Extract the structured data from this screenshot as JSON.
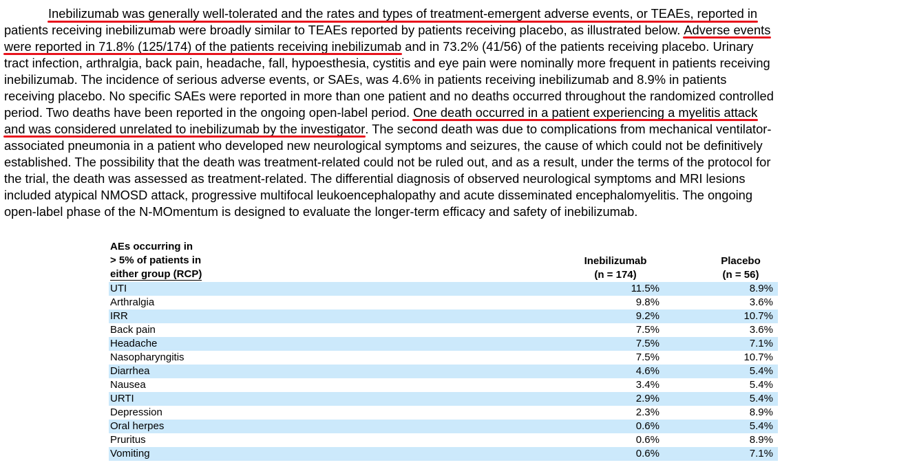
{
  "paragraph": {
    "line1": {
      "highlighted": "Inebilizumab was generally well-tolerated and the rates and types of treatment-emergent adverse events, or TEAEs, reported in"
    },
    "line2": {
      "text": "patients receiving inebilizumab were broadly similar to TEAEs reported by patients receiving placebo, as illustrated below. ",
      "highlighted": "Adverse events"
    },
    "line3": {
      "highlighted": "were reported in 71.8% (125/174) of the patients receiving inebilizumab",
      "text": " and in 73.2% (41/56) of the patients receiving placebo. Urinary"
    },
    "line4": "tract infection, arthralgia, back pain, headache, fall, hypoesthesia, cystitis and eye pain were nominally more frequent in patients receiving",
    "line5": "inebilizumab. The incidence of serious adverse events, or SAEs, was 4.6% in patients receiving inebilizumab and 8.9% in patients",
    "line6": "receiving placebo. No specific SAEs were reported in more than one patient and no deaths occurred throughout the randomized controlled",
    "line7": {
      "text": "period. Two deaths have been reported in the ongoing open-label period. ",
      "highlighted": "One death occurred in a patient experiencing a myelitis attack"
    },
    "line8": {
      "highlighted": "and was considered unrelated to inebilizumab by the investigator",
      "text": ". The second death was due to complications from mechanical ventilator-"
    },
    "line9": "associated pneumonia in a patient who developed new neurological symptoms and seizures, the cause of which could not be definitively",
    "line10": "established. The possibility that the death was treatment-related could not be ruled out, and as a result, under the terms of the protocol for",
    "line11": "the trial, the death was assessed as treatment-related. The differential diagnosis of observed neurological symptoms and MRI lesions",
    "line12": "included atypical NMOSD attack, progressive multifocal leukoencephalopathy and acute disseminated encephalomyelitis. The ongoing",
    "line13": "open-label phase of the N-MOmentum is designed to evaluate the longer-term efficacy and safety of inebilizumab."
  },
  "table": {
    "header": {
      "label_line1": "AEs occurring in",
      "label_line2": "> 5% of patients in",
      "label_line3": "either group (RCP)",
      "col1_line1": "Inebilizumab",
      "col1_line2": "(n = 174)",
      "col2_line1": "Placebo",
      "col2_line2": "(n = 56)"
    },
    "rows": [
      {
        "name": "UTI",
        "inebilizumab": "11.5%",
        "placebo": "8.9%"
      },
      {
        "name": "Arthralgia",
        "inebilizumab": "9.8%",
        "placebo": "3.6%"
      },
      {
        "name": "IRR",
        "inebilizumab": "9.2%",
        "placebo": "10.7%"
      },
      {
        "name": "Back pain",
        "inebilizumab": "7.5%",
        "placebo": "3.6%"
      },
      {
        "name": "Headache",
        "inebilizumab": "7.5%",
        "placebo": "7.1%"
      },
      {
        "name": "Nasopharyngitis",
        "inebilizumab": "7.5%",
        "placebo": "10.7%"
      },
      {
        "name": "Diarrhea",
        "inebilizumab": "4.6%",
        "placebo": "5.4%"
      },
      {
        "name": "Nausea",
        "inebilizumab": "3.4%",
        "placebo": "5.4%"
      },
      {
        "name": "URTI",
        "inebilizumab": "2.9%",
        "placebo": "5.4%"
      },
      {
        "name": "Depression",
        "inebilizumab": "2.3%",
        "placebo": "8.9%"
      },
      {
        "name": "Oral herpes",
        "inebilizumab": "0.6%",
        "placebo": "5.4%"
      },
      {
        "name": "Pruritus",
        "inebilizumab": "0.6%",
        "placebo": "8.9%"
      },
      {
        "name": "Vomiting",
        "inebilizumab": "0.6%",
        "placebo": "7.1%"
      }
    ]
  },
  "colors": {
    "underline": "#e8141d",
    "row_shade": "#cce9fb"
  }
}
